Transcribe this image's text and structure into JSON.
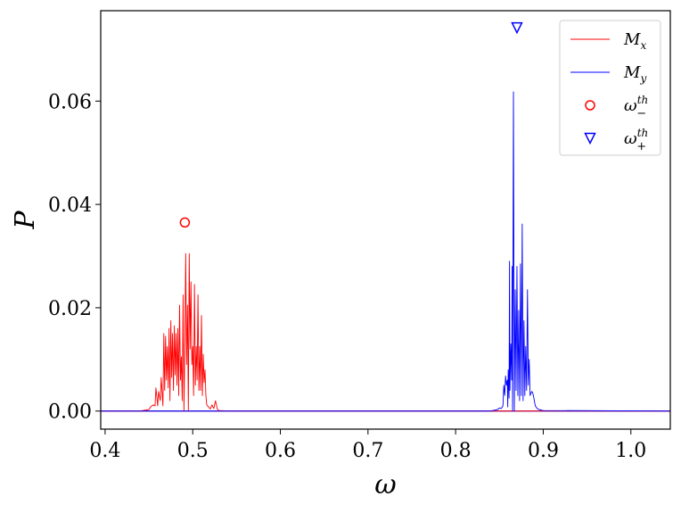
{
  "chart_data": {
    "type": "line",
    "title": "",
    "xlabel": "ω",
    "ylabel": "P",
    "xlim": [
      0.395,
      1.045
    ],
    "ylim": [
      -0.0035,
      0.0775
    ],
    "xticks": [
      0.4,
      0.5,
      0.6,
      0.7,
      0.8,
      0.9,
      1.0
    ],
    "xtick_labels": [
      "0.4",
      "0.5",
      "0.6",
      "0.7",
      "0.8",
      "0.9",
      "1.0"
    ],
    "yticks": [
      0.0,
      0.02,
      0.04,
      0.06
    ],
    "ytick_labels": [
      "0.00",
      "0.02",
      "0.04",
      "0.06"
    ],
    "grid": false,
    "legend_position": "top-right",
    "series": [
      {
        "name": "M_x",
        "color": "#ff0000",
        "kind": "line",
        "x": [
          0.395,
          0.44,
          0.45,
          0.452,
          0.455,
          0.457,
          0.458,
          0.46,
          0.461,
          0.463,
          0.464,
          0.466,
          0.467,
          0.468,
          0.469,
          0.47,
          0.471,
          0.472,
          0.473,
          0.474,
          0.475,
          0.476,
          0.477,
          0.478,
          0.479,
          0.48,
          0.481,
          0.482,
          0.483,
          0.484,
          0.485,
          0.486,
          0.487,
          0.488,
          0.489,
          0.49,
          0.491,
          0.492,
          0.493,
          0.494,
          0.495,
          0.496,
          0.497,
          0.498,
          0.499,
          0.5,
          0.501,
          0.502,
          0.503,
          0.504,
          0.505,
          0.506,
          0.507,
          0.508,
          0.509,
          0.51,
          0.511,
          0.512,
          0.513,
          0.514,
          0.515,
          0.516,
          0.518,
          0.52,
          0.522,
          0.524,
          0.526,
          0.528,
          0.53,
          0.545,
          1.045
        ],
        "y": [
          0.0,
          0.0,
          0.0003,
          0.0008,
          0.0012,
          0.001,
          0.0045,
          0.001,
          0.0038,
          0.002,
          0.0065,
          0.001,
          0.015,
          0.004,
          0.0145,
          0.006,
          0.0125,
          0.0045,
          0.016,
          0.002,
          0.0175,
          0.0065,
          0.015,
          0.004,
          0.0165,
          0.007,
          0.015,
          0.005,
          0.016,
          0.003,
          0.0205,
          0.006,
          0.0105,
          0.002,
          0.0225,
          0.0,
          0.0135,
          0.0305,
          0.009,
          0.0205,
          0.0,
          0.0305,
          0.012,
          0.025,
          0.009,
          0.0125,
          0.003,
          0.0245,
          0.005,
          0.0125,
          0.006,
          0.0225,
          0.004,
          0.0125,
          0.004,
          0.0185,
          0.003,
          0.011,
          0.0055,
          0.008,
          0.003,
          0.0012,
          0.0008,
          0.0004,
          0.0012,
          0.0005,
          0.002,
          0.0004,
          0.0001,
          0.0,
          0.0
        ]
      },
      {
        "name": "M_y",
        "color": "#0000ff",
        "kind": "line",
        "x": [
          0.395,
          0.84,
          0.848,
          0.85,
          0.852,
          0.854,
          0.855,
          0.856,
          0.857,
          0.858,
          0.859,
          0.8595,
          0.86,
          0.861,
          0.8615,
          0.862,
          0.863,
          0.864,
          0.8645,
          0.865,
          0.866,
          0.867,
          0.868,
          0.869,
          0.87,
          0.871,
          0.872,
          0.873,
          0.874,
          0.875,
          0.876,
          0.877,
          0.878,
          0.879,
          0.88,
          0.881,
          0.882,
          0.883,
          0.884,
          0.885,
          0.886,
          0.887,
          0.888,
          0.889,
          0.89,
          0.891,
          0.893,
          0.895,
          0.9,
          1.045
        ],
        "y": [
          0.0,
          0.0,
          0.0003,
          0.0006,
          0.0005,
          0.001,
          0.005,
          0.003,
          0.0068,
          0.005,
          0.006,
          0.0008,
          0.008,
          0.0025,
          0.029,
          0.004,
          0.013,
          0.006,
          0.028,
          0.0,
          0.0618,
          0.0,
          0.0235,
          0.004,
          0.028,
          0.003,
          0.0195,
          0.002,
          0.0285,
          0.003,
          0.0362,
          0.002,
          0.0175,
          0.003,
          0.0125,
          0.004,
          0.0235,
          0.005,
          0.01,
          0.003,
          0.0035,
          0.0038,
          0.0035,
          0.0028,
          0.0018,
          0.001,
          0.0005,
          0.0003,
          0.0001,
          0.0
        ]
      },
      {
        "name": "ω_-^th",
        "color": "#ff0000",
        "kind": "marker",
        "marker": "circle",
        "x": [
          0.491
        ],
        "y": [
          0.0365
        ]
      },
      {
        "name": "ω_+^th",
        "color": "#0000ff",
        "kind": "marker",
        "marker": "triangle-down",
        "x": [
          0.87
        ],
        "y": [
          0.0742
        ]
      }
    ],
    "baseline_segments": [
      {
        "color": "#ff0000",
        "x": [
          0.395,
          1.045
        ],
        "y": [
          0.0,
          0.0
        ]
      },
      {
        "color": "#0000ff",
        "x": [
          0.395,
          1.045
        ],
        "y": [
          0.0,
          0.0
        ]
      }
    ],
    "legend": [
      {
        "series": "M_x",
        "base": "M",
        "sub": "x",
        "sup": ""
      },
      {
        "series": "M_y",
        "base": "M",
        "sub": "y",
        "sup": ""
      },
      {
        "series": "ω_-^th",
        "base": "ω",
        "sub": "−",
        "sup": "th"
      },
      {
        "series": "ω_+^th",
        "base": "ω",
        "sub": "+",
        "sup": "th"
      }
    ]
  }
}
